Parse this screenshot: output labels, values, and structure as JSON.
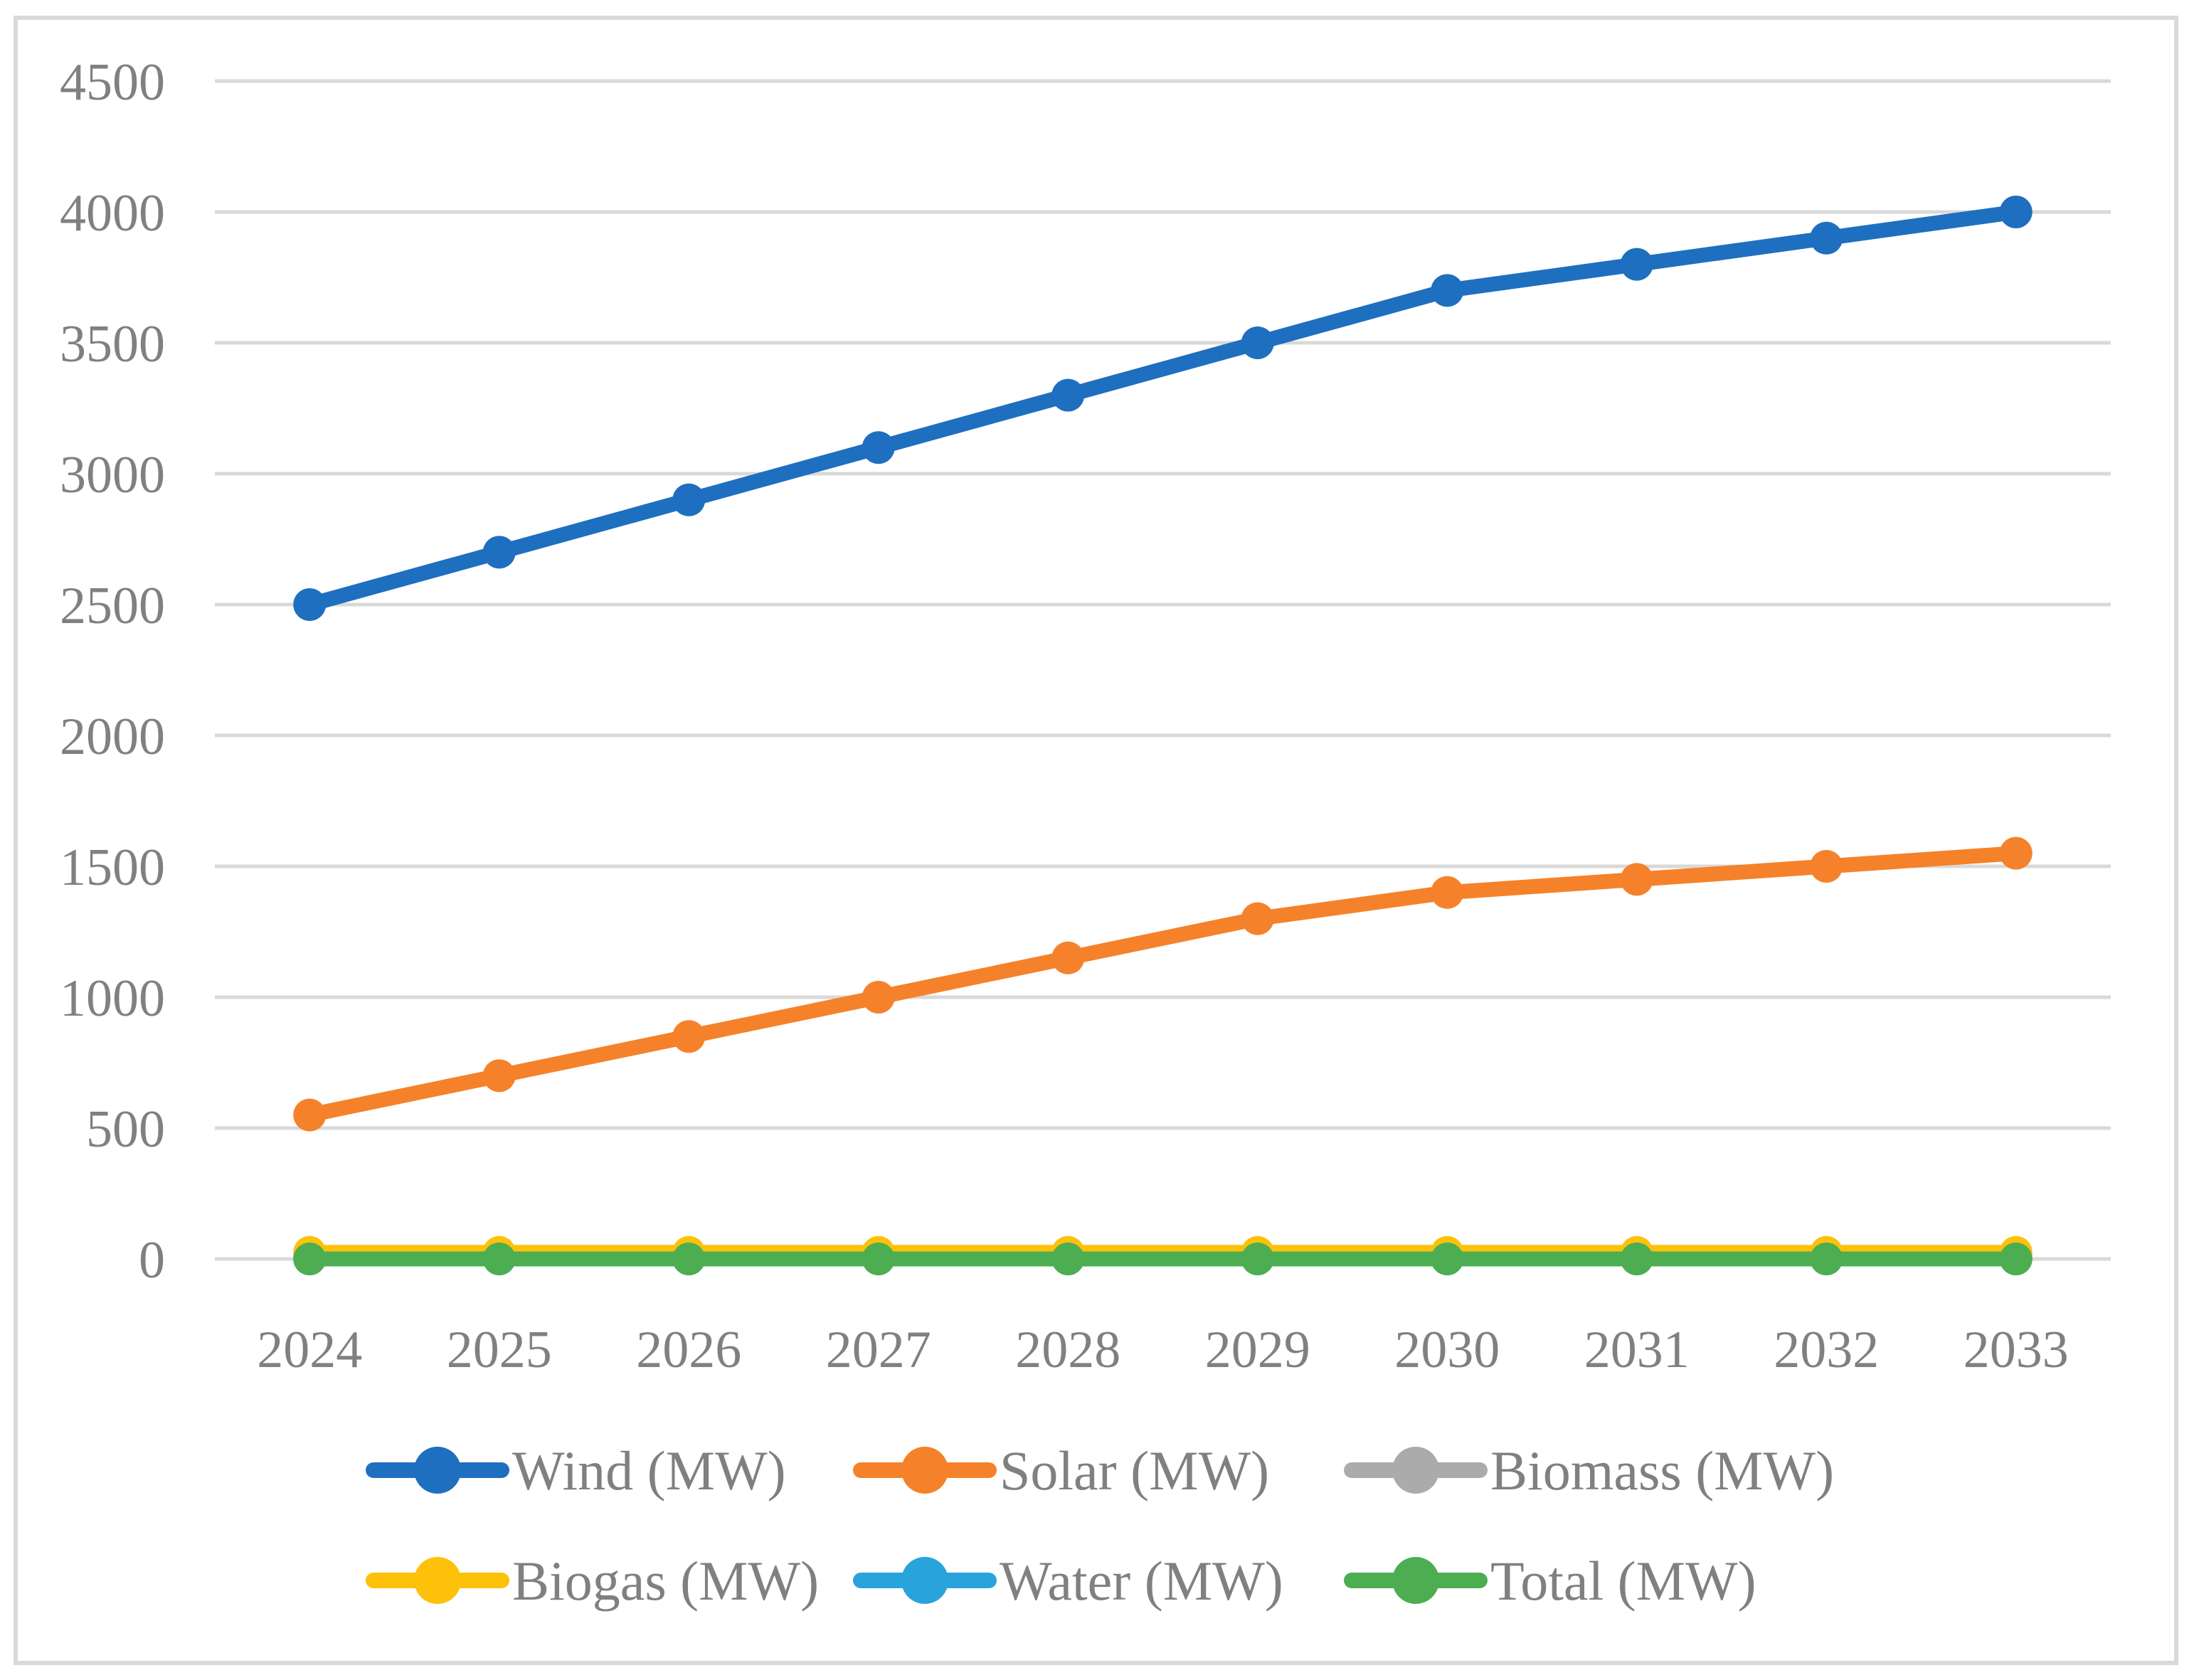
{
  "figure": {
    "kind": "line-chart",
    "background": "#ffffff",
    "border_color": "#d9d9d9",
    "grid_color": "#d9d9d9",
    "text_color": "#808080"
  },
  "chart_data": {
    "type": "line",
    "title": "",
    "xlabel": "",
    "ylabel": "",
    "categories": [
      "2024",
      "2025",
      "2026",
      "2027",
      "2028",
      "2029",
      "2030",
      "2031",
      "2032",
      "2033"
    ],
    "series": [
      {
        "name": "Wind (MW)",
        "color": "#1e6fbf",
        "values": [
          2500,
          2700,
          2900,
          3100,
          3300,
          3500,
          3700,
          3800,
          3900,
          4000
        ]
      },
      {
        "name": "Solar (MW)",
        "color": "#f5822a",
        "values": [
          550,
          700,
          850,
          1000,
          1150,
          1300,
          1400,
          1450,
          1500,
          1550
        ]
      },
      {
        "name": "Biomass (MW)",
        "color": "#ababab",
        "values": [
          15,
          15,
          15,
          15,
          15,
          15,
          15,
          15,
          15,
          15
        ]
      },
      {
        "name": "Biogas (MW)",
        "color": "#fec10a",
        "values": [
          25,
          25,
          25,
          25,
          25,
          25,
          25,
          25,
          25,
          25
        ]
      },
      {
        "name": "Water (MW)",
        "color": "#29a3dc",
        "values": [
          0,
          0,
          0,
          0,
          0,
          0,
          0,
          0,
          0,
          0
        ]
      },
      {
        "name": "Total (MW)",
        "color": "#4cae50",
        "values": [
          0,
          0,
          0,
          0,
          0,
          0,
          0,
          0,
          0,
          0
        ]
      }
    ],
    "ylim": [
      0,
      4500
    ],
    "yticks": [
      4500,
      4000,
      3500,
      3000,
      2500,
      2000,
      1500,
      1000,
      500,
      0
    ],
    "grid": "horizontal",
    "legend_position": "bottom",
    "legend_rows": [
      [
        "Wind (MW)",
        "Solar (MW)",
        "Biomass (MW)"
      ],
      [
        "Biogas (MW)",
        "Water (MW)",
        "Total (MW)"
      ]
    ]
  }
}
